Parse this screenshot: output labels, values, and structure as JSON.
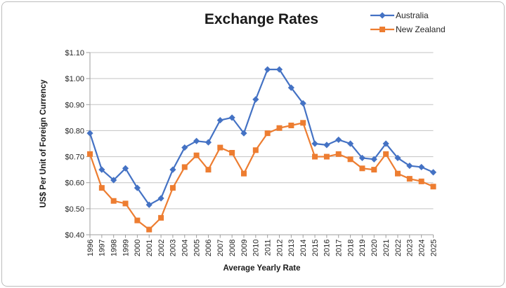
{
  "chart_data": {
    "type": "line",
    "title": "Exchange Rates",
    "xlabel": "Average Yearly Rate",
    "ylabel": "US$ Per Unit of Foreign Currency",
    "x": [
      "1996",
      "1997",
      "1998",
      "1999",
      "2000",
      "2001",
      "2002",
      "2003",
      "2004",
      "2005",
      "2006",
      "2007",
      "2008",
      "2009",
      "2010",
      "2011",
      "2012",
      "2013",
      "2014",
      "2015",
      "2016",
      "2017",
      "2018",
      "2019",
      "2020",
      "2021",
      "2022",
      "2023",
      "2024",
      "2025"
    ],
    "series": [
      {
        "name": "Australia",
        "color": "#4472C4",
        "marker": "diamond",
        "values": [
          0.79,
          0.65,
          0.61,
          0.655,
          0.58,
          0.515,
          0.54,
          0.65,
          0.735,
          0.76,
          0.755,
          0.84,
          0.85,
          0.79,
          0.92,
          1.035,
          1.035,
          0.965,
          0.905,
          0.75,
          0.745,
          0.765,
          0.75,
          0.695,
          0.69,
          0.75,
          0.695,
          0.665,
          0.66,
          0.64
        ]
      },
      {
        "name": "New Zealand",
        "color": "#ED7D31",
        "marker": "square",
        "values": [
          0.71,
          0.58,
          0.53,
          0.52,
          0.455,
          0.42,
          0.465,
          0.58,
          0.66,
          0.705,
          0.65,
          0.735,
          0.715,
          0.635,
          0.725,
          0.79,
          0.81,
          0.82,
          0.83,
          0.7,
          0.7,
          0.71,
          0.69,
          0.655,
          0.65,
          0.71,
          0.635,
          0.615,
          0.605,
          0.585
        ]
      }
    ],
    "ylim": [
      0.4,
      1.1
    ],
    "y_ticks": {
      "values": [
        0.4,
        0.5,
        0.6,
        0.7,
        0.8,
        0.9,
        1.0,
        1.1
      ],
      "labels": [
        "$0.40",
        "$0.50",
        "$0.60",
        "$0.70",
        "$0.80",
        "$0.90",
        "$1.00",
        "$1.10"
      ]
    },
    "grid": true,
    "legend_position": "top-right"
  },
  "colors": {
    "gridline": "#c3c3c3",
    "axis": "#9e9e9e",
    "tick_text": "#262626",
    "title_text": "#1a1a1a",
    "frame_border": "#bdbdbd"
  }
}
